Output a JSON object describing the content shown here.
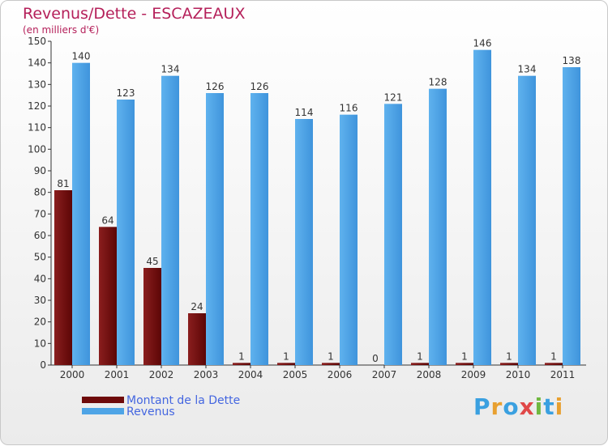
{
  "chart_data": {
    "type": "bar",
    "title": "Revenus/Dette - ESCAZEAUX",
    "subtitle": "(en milliers d'€)",
    "categories": [
      "2000",
      "2001",
      "2002",
      "2003",
      "2004",
      "2005",
      "2006",
      "2007",
      "2008",
      "2009",
      "2010",
      "2011"
    ],
    "series": [
      {
        "name": "Montant de la Dette",
        "color": "#6e0a0a",
        "values": [
          81,
          64,
          45,
          24,
          1,
          1,
          1,
          0,
          1,
          1,
          1,
          1
        ]
      },
      {
        "name": "Revenus",
        "color": "#4ea4e6",
        "values": [
          140,
          123,
          134,
          126,
          126,
          114,
          116,
          121,
          128,
          146,
          134,
          138
        ]
      }
    ],
    "yticks": [
      0,
      10,
      20,
      30,
      40,
      50,
      60,
      70,
      80,
      90,
      100,
      110,
      120,
      130,
      140,
      150
    ],
    "ylim": [
      0,
      150
    ],
    "grid": false,
    "legend": "bottom-left"
  },
  "logo": {
    "text": "Proxiti",
    "letters": [
      "P",
      "r",
      "o",
      "x",
      "i",
      "t",
      "i"
    ],
    "colors": [
      "#3aa0e0",
      "#e8a030",
      "#3aa0e0",
      "#e04848",
      "#70b840",
      "#3aa0e0",
      "#e8a030"
    ]
  }
}
